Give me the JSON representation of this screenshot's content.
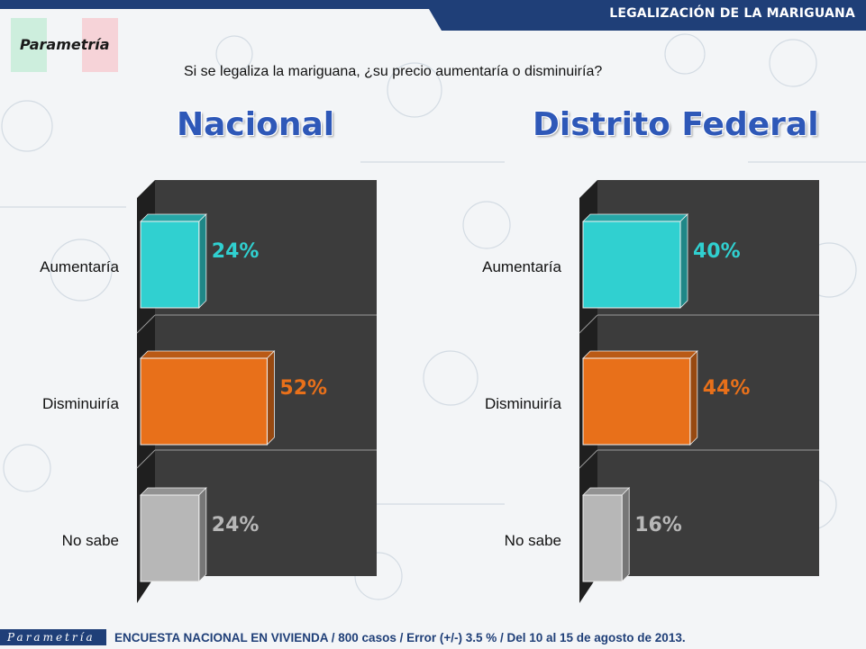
{
  "header": {
    "title": "LEGALIZACIÓN DE LA MARIGUANA",
    "brand": "Parametría"
  },
  "question": "Si se legaliza la mariguana, ¿su precio aumentaría o disminuiría?",
  "footer": {
    "logo_text": "Parametría",
    "note": "ENCUESTA NACIONAL EN VIVIENDA / 800 casos / Error (+/-) 3.5 % / Del 10 al 15 de agosto de 2013."
  },
  "colors": {
    "aumentaria": "#30d0d0",
    "disminuiria": "#e8701a",
    "no_sabe": "#b7b7b7",
    "plot_bg": "#3c3c3c",
    "title_blue": "#2e58b8",
    "header_navy": "#1f3f78"
  },
  "chart_data": [
    {
      "type": "bar",
      "orientation": "horizontal",
      "title": "Nacional",
      "categories": [
        "Aumentaría",
        "Disminuiría",
        "No sabe"
      ],
      "values": [
        24,
        52,
        24
      ],
      "data_labels": [
        "24%",
        "52%",
        "24%"
      ],
      "xlim": [
        0,
        100
      ],
      "grid": false,
      "legend": "none"
    },
    {
      "type": "bar",
      "orientation": "horizontal",
      "title": "Distrito Federal",
      "categories": [
        "Aumentaría",
        "Disminuiría",
        "No sabe"
      ],
      "values": [
        40,
        44,
        16
      ],
      "data_labels": [
        "40%",
        "44%",
        "16%"
      ],
      "xlim": [
        0,
        100
      ],
      "grid": false,
      "legend": "none"
    }
  ]
}
